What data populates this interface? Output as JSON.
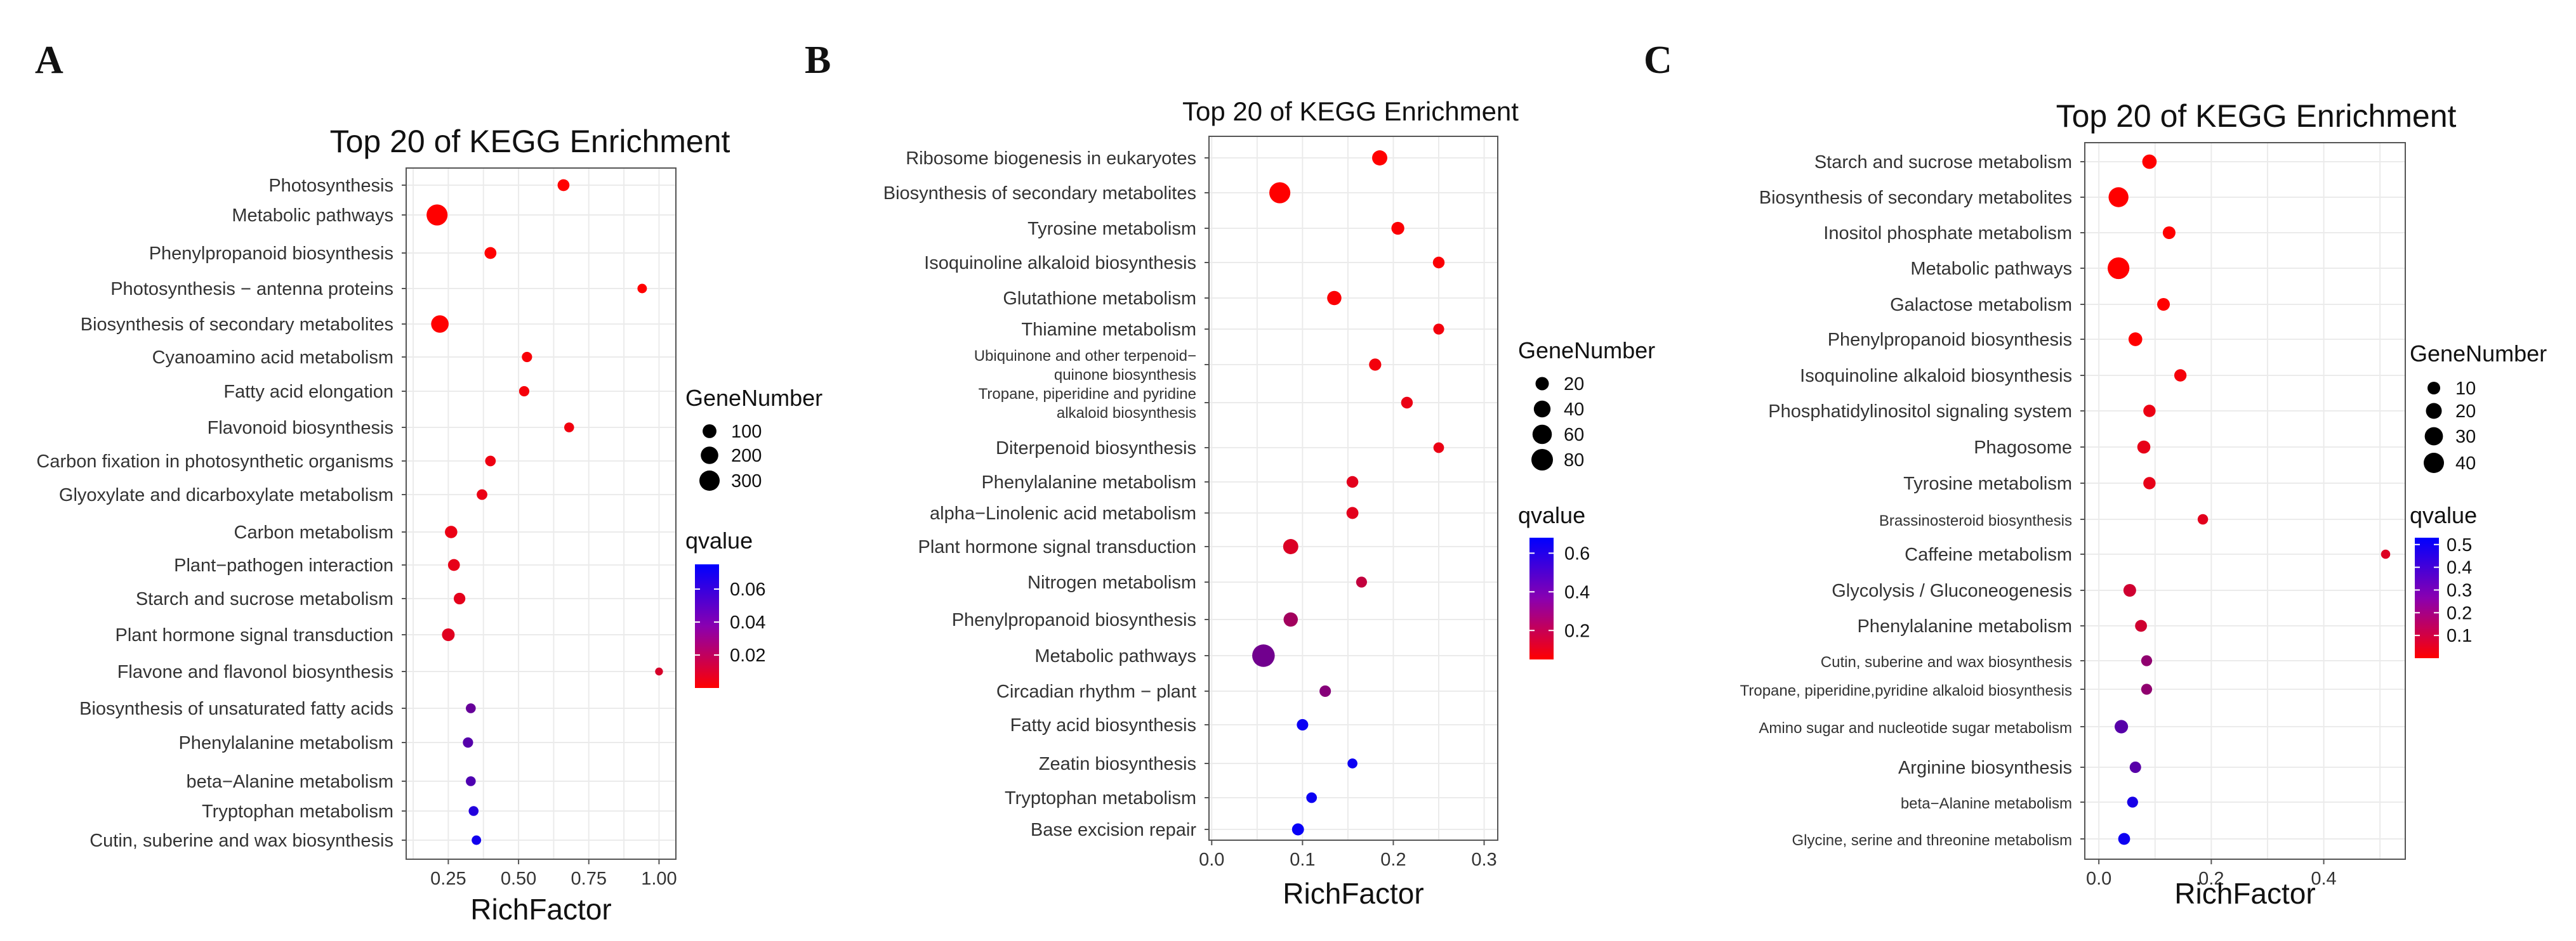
{
  "chart_data": [
    {
      "panel": "A",
      "type": "scatter",
      "title": "Top 20 of KEGG Enrichment",
      "xlabel": "RichFactor",
      "ylabel": "",
      "xlim": [
        0.1,
        1.06
      ],
      "xticks": [
        0.25,
        0.5,
        0.75,
        1.0
      ],
      "xtick_labels": [
        "0.25",
        "0.50",
        "0.75",
        "1.00"
      ],
      "size_legend": {
        "title": "GeneNumber",
        "values": [
          100,
          200,
          300
        ],
        "labels": [
          "100",
          "200",
          "300"
        ]
      },
      "color_legend": {
        "title": "qvalue",
        "range": [
          0.0,
          0.075
        ],
        "ticks": [
          0.06,
          0.04,
          0.02
        ],
        "labels": [
          "0.06",
          "0.04",
          "0.02"
        ]
      },
      "color_low": "#ff0000",
      "color_high": "#0000ff",
      "pathways": [
        {
          "name": "Photosynthesis",
          "rich": 0.66,
          "genes": 60,
          "qvalue": 0.0
        },
        {
          "name": "Metabolic pathways",
          "rich": 0.21,
          "genes": 330,
          "qvalue": 0.0
        },
        {
          "name": "Phenylpropanoid biosynthesis",
          "rich": 0.4,
          "genes": 60,
          "qvalue": 0.0
        },
        {
          "name": "Photosynthesis − antenna proteins",
          "rich": 0.94,
          "genes": 25,
          "qvalue": 0.0
        },
        {
          "name": "Biosynthesis of secondary metabolites",
          "rich": 0.22,
          "genes": 200,
          "qvalue": 0.0
        },
        {
          "name": "Cyanoamino acid metabolism",
          "rich": 0.53,
          "genes": 35,
          "qvalue": 0.002
        },
        {
          "name": "Fatty acid elongation",
          "rich": 0.52,
          "genes": 35,
          "qvalue": 0.003
        },
        {
          "name": "Flavonoid biosynthesis",
          "rich": 0.68,
          "genes": 30,
          "qvalue": 0.004
        },
        {
          "name": "Carbon fixation in photosynthetic organisms",
          "rich": 0.4,
          "genes": 40,
          "qvalue": 0.005
        },
        {
          "name": "Glyoxylate and dicarboxylate metabolism",
          "rich": 0.37,
          "genes": 40,
          "qvalue": 0.006
        },
        {
          "name": "Carbon metabolism",
          "rich": 0.26,
          "genes": 70,
          "qvalue": 0.006
        },
        {
          "name": "Plant−pathogen interaction",
          "rich": 0.27,
          "genes": 60,
          "qvalue": 0.007
        },
        {
          "name": "Starch and sucrose metabolism",
          "rich": 0.29,
          "genes": 55,
          "qvalue": 0.008
        },
        {
          "name": "Plant hormone signal transduction",
          "rich": 0.25,
          "genes": 75,
          "qvalue": 0.009
        },
        {
          "name": "Flavone and flavonol biosynthesis",
          "rich": 1.0,
          "genes": 10,
          "qvalue": 0.012
        },
        {
          "name": "Biosynthesis of unsaturated fatty acids",
          "rich": 0.33,
          "genes": 30,
          "qvalue": 0.045
        },
        {
          "name": "Phenylalanine metabolism",
          "rich": 0.32,
          "genes": 35,
          "qvalue": 0.05
        },
        {
          "name": "beta−Alanine metabolism",
          "rich": 0.33,
          "genes": 30,
          "qvalue": 0.052
        },
        {
          "name": "Tryptophan metabolism",
          "rich": 0.34,
          "genes": 30,
          "qvalue": 0.065
        },
        {
          "name": "Cutin, suberine and wax biosynthesis",
          "rich": 0.35,
          "genes": 25,
          "qvalue": 0.07
        }
      ]
    },
    {
      "panel": "B",
      "type": "scatter",
      "title": "Top 20 of KEGG Enrichment",
      "xlabel": "RichFactor",
      "ylabel": "",
      "xlim": [
        -0.003,
        0.315
      ],
      "xticks": [
        0.0,
        0.1,
        0.2,
        0.3
      ],
      "xtick_labels": [
        "0.0",
        "0.1",
        "0.2",
        "0.3"
      ],
      "size_legend": {
        "title": "GeneNumber",
        "values": [
          20,
          40,
          60,
          80
        ],
        "labels": [
          "20",
          "40",
          "60",
          "80"
        ]
      },
      "color_legend": {
        "title": "qvalue",
        "range": [
          0.05,
          0.68
        ],
        "ticks": [
          0.6,
          0.4,
          0.2
        ],
        "labels": [
          "0.6",
          "0.4",
          "0.2"
        ]
      },
      "color_low": "#ff0000",
      "color_high": "#0000ff",
      "pathways": [
        {
          "name": "Ribosome biogenesis in eukaryotes",
          "rich": 0.185,
          "genes": 30,
          "qvalue": 0.05
        },
        {
          "name": "Biosynthesis of secondary metabolites",
          "rich": 0.075,
          "genes": 75,
          "qvalue": 0.05
        },
        {
          "name": "Tyrosine metabolism",
          "rich": 0.205,
          "genes": 18,
          "qvalue": 0.06
        },
        {
          "name": "Isoquinoline alkaloid biosynthesis",
          "rich": 0.25,
          "genes": 13,
          "qvalue": 0.06
        },
        {
          "name": "Glutathione metabolism",
          "rich": 0.135,
          "genes": 25,
          "qvalue": 0.06
        },
        {
          "name": "Thiamine metabolism",
          "rich": 0.25,
          "genes": 10,
          "qvalue": 0.08
        },
        {
          "name": "Ubiquinone and other terpenoid−quinone biosynthesis",
          "rich": 0.18,
          "genes": 15,
          "qvalue": 0.08
        },
        {
          "name": "Tropane, piperidine and pyridine alkaloid biosynthesis",
          "rich": 0.215,
          "genes": 13,
          "qvalue": 0.1
        },
        {
          "name": "Diterpenoid biosynthesis",
          "rich": 0.25,
          "genes": 9,
          "qvalue": 0.1
        },
        {
          "name": "Phenylalanine metabolism",
          "rich": 0.155,
          "genes": 13,
          "qvalue": 0.12
        },
        {
          "name": "alpha−Linolenic acid metabolism",
          "rich": 0.155,
          "genes": 14,
          "qvalue": 0.12
        },
        {
          "name": "Plant hormone signal transduction",
          "rich": 0.087,
          "genes": 30,
          "qvalue": 0.14
        },
        {
          "name": "Nitrogen metabolism",
          "rich": 0.165,
          "genes": 10,
          "qvalue": 0.2
        },
        {
          "name": "Phenylpropanoid biosynthesis",
          "rich": 0.087,
          "genes": 25,
          "qvalue": 0.28
        },
        {
          "name": "Metabolic pathways",
          "rich": 0.057,
          "genes": 90,
          "qvalue": 0.4
        },
        {
          "name": "Circadian rhythm − plant",
          "rich": 0.125,
          "genes": 12,
          "qvalue": 0.35
        },
        {
          "name": "Fatty acid biosynthesis",
          "rich": 0.1,
          "genes": 12,
          "qvalue": 0.65
        },
        {
          "name": "Zeatin biosynthesis",
          "rich": 0.155,
          "genes": 7,
          "qvalue": 0.65
        },
        {
          "name": "Tryptophan metabolism",
          "rich": 0.11,
          "genes": 9,
          "qvalue": 0.65
        },
        {
          "name": "Base excision repair",
          "rich": 0.095,
          "genes": 14,
          "qvalue": 0.66
        }
      ]
    },
    {
      "panel": "C",
      "type": "scatter",
      "title": "Top 20 of KEGG Enrichment",
      "xlabel": "RichFactor",
      "ylabel": "",
      "xlim": [
        -0.025,
        0.545
      ],
      "xticks": [
        0.0,
        0.2,
        0.4
      ],
      "xtick_labels": [
        "0.0",
        "0.2",
        "0.4"
      ],
      "size_legend": {
        "title": "GeneNumber",
        "values": [
          10,
          20,
          30,
          40
        ],
        "labels": [
          "10",
          "20",
          "30",
          "40"
        ]
      },
      "color_legend": {
        "title": "qvalue",
        "range": [
          0.0,
          0.53
        ],
        "ticks": [
          0.5,
          0.4,
          0.3,
          0.2,
          0.1
        ],
        "labels": [
          "0.5",
          "0.4",
          "0.3",
          "0.2",
          "0.1"
        ]
      },
      "color_low": "#ff0000",
      "color_high": "#0000ff",
      "pathways": [
        {
          "name": "Starch and sucrose metabolism",
          "rich": 0.09,
          "genes": 15,
          "qvalue": 0.0
        },
        {
          "name": "Biosynthesis of secondary metabolites",
          "rich": 0.035,
          "genes": 38,
          "qvalue": 0.0
        },
        {
          "name": "Inositol phosphate metabolism",
          "rich": 0.125,
          "genes": 10,
          "qvalue": 0.0
        },
        {
          "name": "Metabolic pathways",
          "rich": 0.035,
          "genes": 48,
          "qvalue": 0.0
        },
        {
          "name": "Galactose metabolism",
          "rich": 0.115,
          "genes": 10,
          "qvalue": 0.0
        },
        {
          "name": "Phenylpropanoid biosynthesis",
          "rich": 0.065,
          "genes": 13,
          "qvalue": 0.0
        },
        {
          "name": "Isoquinoline alkaloid biosynthesis",
          "rich": 0.145,
          "genes": 9,
          "qvalue": 0.02
        },
        {
          "name": "Phosphatidylinositol signaling system",
          "rich": 0.09,
          "genes": 9,
          "qvalue": 0.04
        },
        {
          "name": "Phagosome",
          "rich": 0.08,
          "genes": 11,
          "qvalue": 0.05
        },
        {
          "name": "Tyrosine metabolism",
          "rich": 0.09,
          "genes": 9,
          "qvalue": 0.05
        },
        {
          "name": "Brassinosteroid biosynthesis",
          "rich": 0.185,
          "genes": 5,
          "qvalue": 0.06
        },
        {
          "name": "Caffeine metabolism",
          "rich": 0.51,
          "genes": 3,
          "qvalue": 0.07
        },
        {
          "name": "Glycolysis / Gluconeogenesis",
          "rich": 0.055,
          "genes": 10,
          "qvalue": 0.1
        },
        {
          "name": "Phenylalanine metabolism",
          "rich": 0.075,
          "genes": 8,
          "qvalue": 0.1
        },
        {
          "name": "Cutin, suberine and wax biosynthesis",
          "rich": 0.085,
          "genes": 6,
          "qvalue": 0.23
        },
        {
          "name": "Tropane, piperidine,pyridine alkaloid biosynthesis",
          "rich": 0.085,
          "genes": 6,
          "qvalue": 0.23
        },
        {
          "name": "Amino sugar and nucleotide sugar metabolism",
          "rich": 0.04,
          "genes": 12,
          "qvalue": 0.35
        },
        {
          "name": "Arginine biosynthesis",
          "rich": 0.065,
          "genes": 7,
          "qvalue": 0.35
        },
        {
          "name": "beta−Alanine metabolism",
          "rich": 0.06,
          "genes": 6,
          "qvalue": 0.48
        },
        {
          "name": "Glycine, serine and threonine metabolism",
          "rich": 0.045,
          "genes": 8,
          "qvalue": 0.5
        }
      ]
    }
  ]
}
